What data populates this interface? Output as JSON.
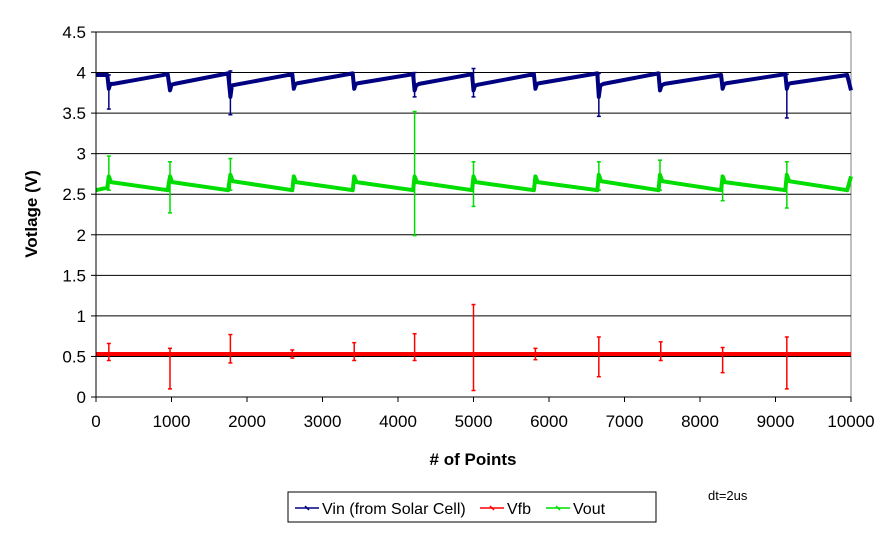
{
  "chart_data": {
    "type": "line",
    "title": "",
    "xlabel": "# of Points",
    "ylabel": "Votlage (V)",
    "xlim": [
      0,
      10000
    ],
    "ylim": [
      0,
      4.5
    ],
    "grid": true,
    "x_ticks": [
      0,
      1000,
      2000,
      3000,
      4000,
      5000,
      6000,
      7000,
      8000,
      9000,
      10000
    ],
    "x_tick_labels": [
      "0",
      "1000",
      "2000",
      "3000",
      "4000",
      "5000",
      "6000",
      "7000",
      "8000",
      "9000",
      "10000"
    ],
    "y_ticks": [
      0,
      0.5,
      1,
      1.5,
      2,
      2.5,
      3,
      3.5,
      4,
      4.5
    ],
    "y_tick_labels": [
      "0",
      "0.5",
      "1",
      "1.5",
      "2",
      "2.5",
      "3",
      "3.5",
      "4",
      "4.5"
    ],
    "legend_position": "bottom-center",
    "series": [
      {
        "name": "Vin (from Solar Cell)",
        "color": "#000080",
        "x": [
          0,
          150,
          170,
          190,
          230,
          950,
          980,
          1000,
          1040,
          1750,
          1780,
          1800,
          1850,
          2600,
          2620,
          2640,
          2680,
          3400,
          3420,
          3440,
          3480,
          4200,
          4220,
          4240,
          4280,
          4980,
          5000,
          5020,
          5060,
          5800,
          5820,
          5840,
          5880,
          6640,
          6660,
          6680,
          6720,
          7450,
          7470,
          7490,
          7530,
          8280,
          8300,
          8320,
          8360,
          9130,
          9150,
          9170,
          9210,
          9950,
          10000
        ],
        "values": [
          3.97,
          3.97,
          3.8,
          3.86,
          3.86,
          3.98,
          3.78,
          3.85,
          3.86,
          3.99,
          3.7,
          3.84,
          3.85,
          3.98,
          3.8,
          3.86,
          3.87,
          3.99,
          3.8,
          3.86,
          3.87,
          3.98,
          3.78,
          3.84,
          3.86,
          3.98,
          3.78,
          3.84,
          3.85,
          3.98,
          3.8,
          3.86,
          3.87,
          3.99,
          3.7,
          3.84,
          3.86,
          3.99,
          3.78,
          3.84,
          3.86,
          3.97,
          3.8,
          3.86,
          3.87,
          3.98,
          3.8,
          3.86,
          3.87,
          3.97,
          3.78
        ],
        "spikes": [
          {
            "x": 170,
            "min": 3.55,
            "max": 3.97
          },
          {
            "x": 1780,
            "min": 3.48,
            "max": 4.02
          },
          {
            "x": 4220,
            "min": 3.7,
            "max": 4.0
          },
          {
            "x": 5000,
            "min": 3.7,
            "max": 4.05
          },
          {
            "x": 6660,
            "min": 3.46,
            "max": 3.99
          },
          {
            "x": 9150,
            "min": 3.44,
            "max": 3.98
          }
        ]
      },
      {
        "name": "Vfb",
        "color": "#ff0000",
        "x": [
          0,
          10000
        ],
        "values": [
          0.53,
          0.53
        ],
        "spikes": [
          {
            "x": 170,
            "min": 0.45,
            "max": 0.66
          },
          {
            "x": 980,
            "min": 0.1,
            "max": 0.6
          },
          {
            "x": 1780,
            "min": 0.42,
            "max": 0.77
          },
          {
            "x": 2600,
            "min": 0.48,
            "max": 0.58
          },
          {
            "x": 3420,
            "min": 0.45,
            "max": 0.67
          },
          {
            "x": 4220,
            "min": 0.45,
            "max": 0.78
          },
          {
            "x": 5000,
            "min": 0.08,
            "max": 1.14
          },
          {
            "x": 5820,
            "min": 0.46,
            "max": 0.6
          },
          {
            "x": 6660,
            "min": 0.25,
            "max": 0.74
          },
          {
            "x": 7480,
            "min": 0.45,
            "max": 0.68
          },
          {
            "x": 8300,
            "min": 0.3,
            "max": 0.61
          },
          {
            "x": 9150,
            "min": 0.1,
            "max": 0.74
          }
        ]
      },
      {
        "name": "Vout",
        "color": "#00dd00",
        "x": [
          0,
          150,
          170,
          200,
          950,
          980,
          1010,
          1750,
          1780,
          1810,
          2600,
          2620,
          2650,
          3400,
          3420,
          3450,
          4200,
          4220,
          4250,
          4980,
          5000,
          5030,
          5800,
          5820,
          5850,
          6640,
          6660,
          6690,
          7450,
          7470,
          7500,
          8280,
          8300,
          8330,
          9130,
          9150,
          9180,
          9950,
          10000
        ],
        "values": [
          2.55,
          2.58,
          2.72,
          2.65,
          2.55,
          2.72,
          2.65,
          2.55,
          2.74,
          2.66,
          2.55,
          2.72,
          2.65,
          2.55,
          2.72,
          2.65,
          2.55,
          2.72,
          2.65,
          2.55,
          2.72,
          2.65,
          2.55,
          2.72,
          2.65,
          2.55,
          2.74,
          2.66,
          2.55,
          2.74,
          2.66,
          2.55,
          2.72,
          2.65,
          2.55,
          2.74,
          2.66,
          2.55,
          2.72
        ],
        "spikes": [
          {
            "x": 170,
            "min": 2.55,
            "max": 2.97
          },
          {
            "x": 980,
            "min": 2.27,
            "max": 2.9
          },
          {
            "x": 1780,
            "min": 2.55,
            "max": 2.94
          },
          {
            "x": 4220,
            "min": 1.99,
            "max": 3.52
          },
          {
            "x": 5000,
            "min": 2.35,
            "max": 2.9
          },
          {
            "x": 6660,
            "min": 2.55,
            "max": 2.9
          },
          {
            "x": 7470,
            "min": 2.55,
            "max": 2.92
          },
          {
            "x": 8300,
            "min": 2.42,
            "max": 2.72
          },
          {
            "x": 9150,
            "min": 2.33,
            "max": 2.9
          }
        ]
      }
    ],
    "annotations": [
      "dt=2us"
    ]
  }
}
